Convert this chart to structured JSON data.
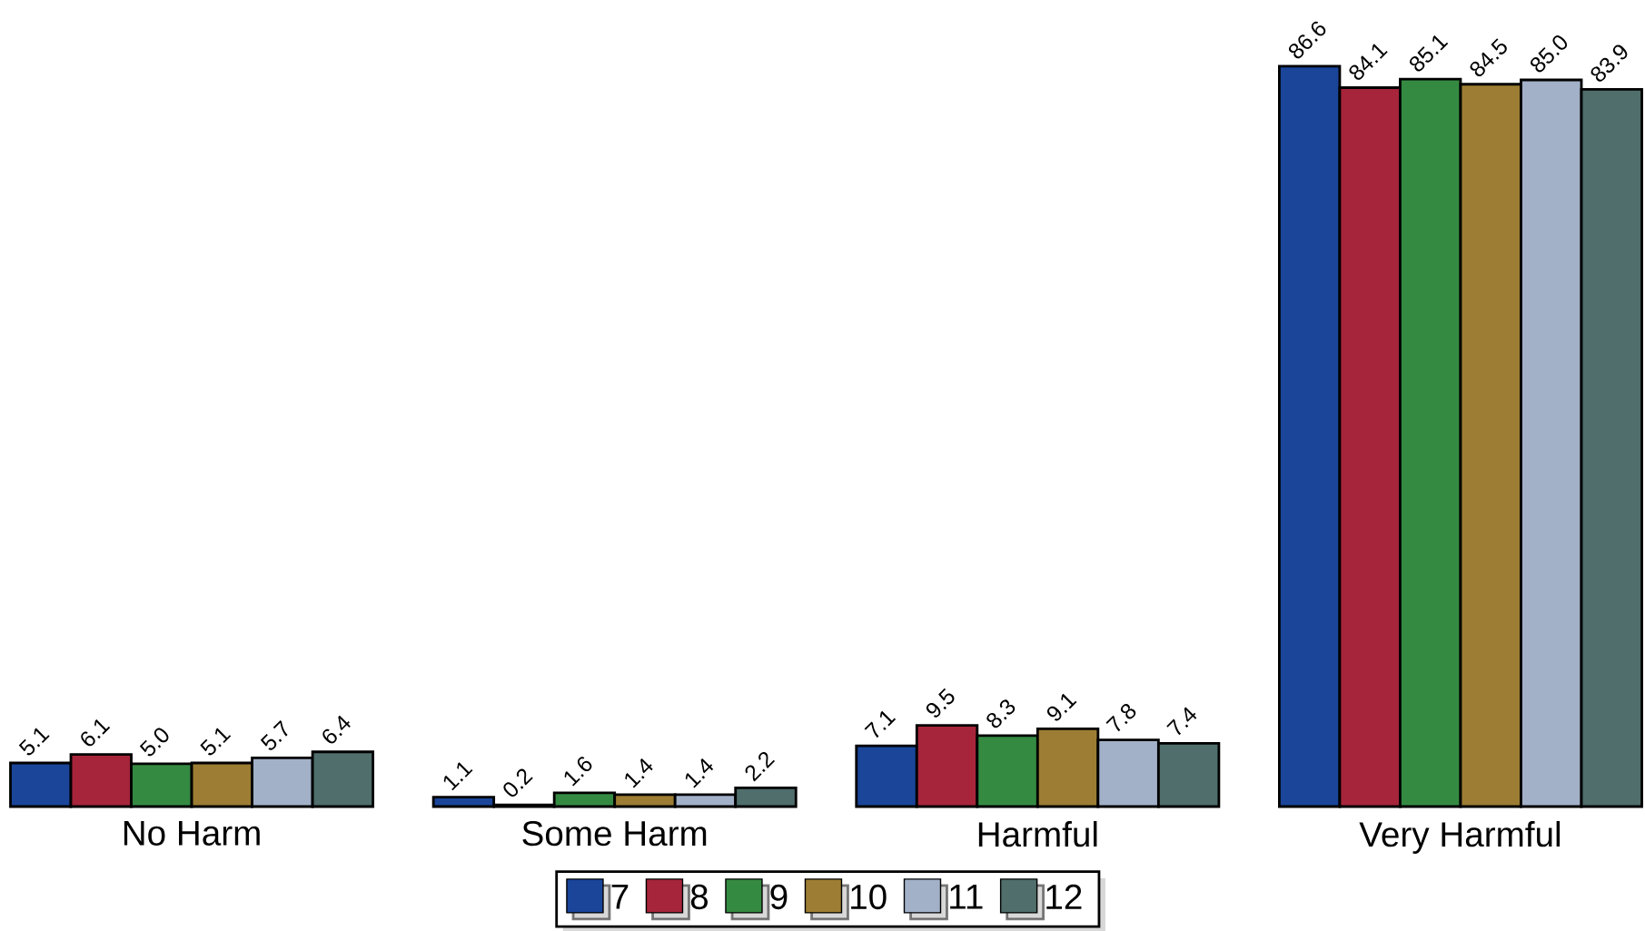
{
  "chart_data": {
    "type": "bar",
    "categories": [
      "No Harm",
      "Some Harm",
      "Harmful",
      "Very Harmful"
    ],
    "series": [
      {
        "name": "7",
        "color": "#1a4599",
        "values": [
          5.1,
          1.1,
          7.1,
          86.6
        ],
        "value_labels": [
          "5.1",
          "1.1",
          "7.1",
          "86.6"
        ]
      },
      {
        "name": "8",
        "color": "#a6253a",
        "values": [
          6.1,
          0.2,
          9.5,
          84.1
        ],
        "value_labels": [
          "6.1",
          "0.2",
          "9.5",
          "84.1"
        ]
      },
      {
        "name": "9",
        "color": "#358a42",
        "values": [
          5.0,
          1.6,
          8.3,
          85.1
        ],
        "value_labels": [
          "5.0",
          "1.6",
          "8.3",
          "85.1"
        ]
      },
      {
        "name": "10",
        "color": "#9c7d33",
        "values": [
          5.1,
          1.4,
          9.1,
          84.5
        ],
        "value_labels": [
          "5.1",
          "1.4",
          "9.1",
          "84.5"
        ]
      },
      {
        "name": "11",
        "color": "#a2b1c8",
        "values": [
          5.7,
          1.4,
          7.8,
          85.0
        ],
        "value_labels": [
          "5.7",
          "1.4",
          "7.8",
          "85.0"
        ]
      },
      {
        "name": "12",
        "color": "#4f6e6c",
        "values": [
          6.4,
          2.2,
          7.4,
          83.9
        ],
        "value_labels": [
          "6.4",
          "2.2",
          "7.4",
          "83.9"
        ]
      }
    ],
    "legend": "bottom"
  }
}
